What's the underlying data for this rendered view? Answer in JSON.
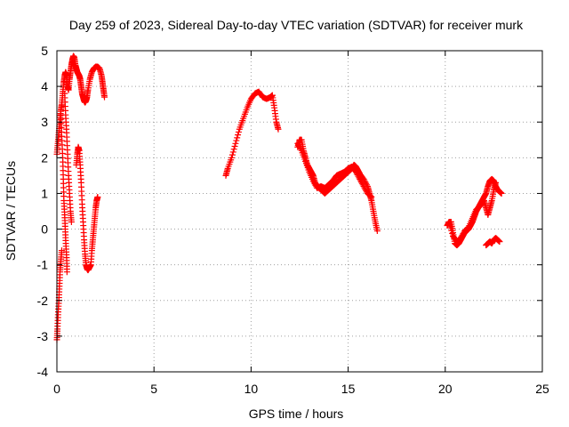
{
  "chart_data": {
    "type": "scatter",
    "title": "Day 259 of 2023, Sidereal Day-to-day VTEC variation (SDTVAR) for receiver murk",
    "xlabel": "GPS time / hours",
    "ylabel": "SDTVAR / TECUs",
    "xlim": [
      0,
      25
    ],
    "ylim": [
      -4,
      5
    ],
    "xticks": [
      0,
      5,
      10,
      15,
      20,
      25
    ],
    "yticks": [
      -4,
      -3,
      -2,
      -1,
      0,
      1,
      2,
      3,
      4,
      5
    ],
    "grid": true,
    "marker": "+",
    "series": [
      {
        "name": "SDTVAR",
        "color": "#ff0000",
        "segments": [
          [
            [
              0.0,
              2.1
            ],
            [
              0.05,
              2.4
            ],
            [
              0.1,
              2.7
            ],
            [
              0.15,
              3.0
            ],
            [
              0.2,
              3.3
            ],
            [
              0.25,
              3.5
            ],
            [
              0.3,
              3.8
            ],
            [
              0.35,
              4.1
            ],
            [
              0.4,
              4.3
            ],
            [
              0.45,
              4.4
            ],
            [
              0.5,
              4.3
            ],
            [
              0.55,
              4.0
            ],
            [
              0.6,
              3.9
            ],
            [
              0.65,
              4.2
            ],
            [
              0.7,
              4.4
            ],
            [
              0.75,
              4.6
            ],
            [
              0.8,
              4.75
            ],
            [
              0.85,
              4.85
            ],
            [
              0.9,
              4.8
            ],
            [
              0.95,
              4.6
            ],
            [
              1.0,
              4.5
            ],
            [
              1.05,
              4.4
            ],
            [
              1.1,
              4.35
            ],
            [
              1.15,
              4.3
            ],
            [
              1.2,
              4.2
            ],
            [
              1.25,
              4.0
            ],
            [
              1.3,
              3.8
            ],
            [
              1.35,
              3.7
            ],
            [
              1.4,
              3.6
            ],
            [
              1.45,
              3.55
            ],
            [
              1.5,
              3.6
            ],
            [
              1.55,
              3.7
            ],
            [
              1.6,
              3.9
            ],
            [
              1.7,
              4.2
            ],
            [
              1.8,
              4.4
            ],
            [
              1.9,
              4.5
            ],
            [
              2.0,
              4.55
            ],
            [
              2.1,
              4.55
            ],
            [
              2.2,
              4.5
            ],
            [
              2.3,
              4.3
            ],
            [
              2.35,
              4.1
            ],
            [
              2.4,
              3.9
            ],
            [
              2.45,
              3.7
            ]
          ],
          [
            [
              0.2,
              3.2
            ],
            [
              0.25,
              2.6
            ],
            [
              0.3,
              2.0
            ],
            [
              0.33,
              1.4
            ],
            [
              0.36,
              0.8
            ],
            [
              0.4,
              0.4
            ],
            [
              0.43,
              0.0
            ],
            [
              0.46,
              -0.4
            ],
            [
              0.5,
              -0.8
            ],
            [
              0.52,
              -1.2
            ]
          ],
          [
            [
              0.4,
              3.8
            ],
            [
              0.45,
              3.2
            ],
            [
              0.5,
              2.7
            ],
            [
              0.55,
              2.1
            ],
            [
              0.6,
              1.5
            ],
            [
              0.65,
              1.0
            ],
            [
              0.7,
              0.5
            ],
            [
              0.75,
              0.2
            ]
          ],
          [
            [
              1.0,
              1.8
            ],
            [
              1.05,
              2.1
            ],
            [
              1.1,
              2.3
            ],
            [
              1.15,
              2.2
            ],
            [
              1.2,
              1.8
            ],
            [
              1.25,
              1.3
            ],
            [
              1.3,
              0.7
            ],
            [
              1.35,
              0.2
            ],
            [
              1.4,
              -0.3
            ],
            [
              1.45,
              -0.7
            ],
            [
              1.5,
              -1.0
            ],
            [
              1.55,
              -1.1
            ],
            [
              1.6,
              -1.15
            ],
            [
              1.65,
              -1.1
            ],
            [
              1.7,
              -1.05
            ],
            [
              1.75,
              -1.0
            ],
            [
              1.8,
              -0.6
            ],
            [
              1.85,
              -0.3
            ],
            [
              1.9,
              0.0
            ],
            [
              1.95,
              0.3
            ],
            [
              2.0,
              0.6
            ],
            [
              2.05,
              0.8
            ],
            [
              2.1,
              0.9
            ]
          ],
          [
            [
              0.0,
              -3.1
            ],
            [
              0.03,
              -2.8
            ],
            [
              0.06,
              -2.4
            ],
            [
              0.1,
              -2.0
            ],
            [
              0.13,
              -1.6
            ],
            [
              0.16,
              -1.2
            ],
            [
              0.2,
              -0.9
            ],
            [
              0.25,
              -0.6
            ]
          ],
          [
            [
              8.7,
              1.5
            ],
            [
              8.8,
              1.7
            ],
            [
              9.0,
              2.0
            ],
            [
              9.2,
              2.4
            ],
            [
              9.4,
              2.8
            ],
            [
              9.6,
              3.1
            ],
            [
              9.8,
              3.4
            ],
            [
              10.0,
              3.65
            ],
            [
              10.2,
              3.8
            ],
            [
              10.4,
              3.85
            ],
            [
              10.6,
              3.7
            ],
            [
              10.8,
              3.65
            ],
            [
              11.0,
              3.7
            ],
            [
              11.1,
              3.75
            ],
            [
              11.2,
              3.4
            ],
            [
              11.3,
              3.0
            ],
            [
              11.4,
              2.8
            ]
          ],
          [
            [
              12.4,
              2.3
            ],
            [
              12.5,
              2.5
            ],
            [
              12.6,
              2.5
            ],
            [
              12.7,
              2.2
            ],
            [
              12.8,
              2.0
            ],
            [
              12.9,
              1.8
            ],
            [
              13.0,
              1.7
            ],
            [
              13.1,
              1.6
            ],
            [
              13.2,
              1.5
            ],
            [
              13.3,
              1.3
            ],
            [
              13.4,
              1.2
            ],
            [
              13.6,
              1.1
            ],
            [
              13.8,
              1.0
            ],
            [
              14.0,
              1.1
            ],
            [
              14.2,
              1.2
            ],
            [
              14.4,
              1.3
            ],
            [
              14.6,
              1.4
            ],
            [
              14.8,
              1.5
            ],
            [
              15.0,
              1.6
            ],
            [
              15.2,
              1.7
            ],
            [
              15.3,
              1.8
            ],
            [
              15.4,
              1.75
            ],
            [
              15.5,
              1.65
            ],
            [
              15.6,
              1.55
            ],
            [
              15.8,
              1.4
            ],
            [
              16.0,
              1.2
            ],
            [
              16.1,
              1.0
            ],
            [
              16.2,
              0.8
            ],
            [
              16.3,
              0.5
            ],
            [
              16.4,
              0.2
            ],
            [
              16.5,
              -0.05
            ]
          ],
          [
            [
              12.4,
              2.4
            ],
            [
              12.6,
              2.2
            ],
            [
              12.8,
              1.9
            ],
            [
              13.0,
              1.6
            ],
            [
              13.2,
              1.35
            ],
            [
              13.4,
              1.15
            ],
            [
              13.6,
              1.2
            ],
            [
              13.8,
              1.15
            ],
            [
              14.0,
              1.25
            ],
            [
              14.2,
              1.35
            ],
            [
              14.4,
              1.5
            ],
            [
              14.6,
              1.55
            ],
            [
              14.8,
              1.6
            ],
            [
              15.0,
              1.7
            ],
            [
              15.2,
              1.75
            ],
            [
              15.4,
              1.6
            ],
            [
              15.6,
              1.4
            ],
            [
              15.8,
              1.2
            ],
            [
              16.0,
              1.0
            ],
            [
              16.2,
              0.9
            ]
          ],
          [
            [
              20.1,
              0.1
            ],
            [
              20.2,
              0.2
            ],
            [
              20.3,
              0.2
            ],
            [
              20.4,
              -0.1
            ],
            [
              20.5,
              -0.4
            ],
            [
              20.6,
              -0.45
            ],
            [
              20.7,
              -0.4
            ],
            [
              20.8,
              -0.3
            ],
            [
              20.9,
              -0.2
            ],
            [
              21.0,
              -0.1
            ],
            [
              21.1,
              -0.05
            ],
            [
              21.2,
              0.0
            ],
            [
              21.3,
              0.1
            ],
            [
              21.4,
              0.2
            ],
            [
              21.5,
              0.35
            ],
            [
              21.6,
              0.5
            ],
            [
              21.7,
              0.6
            ],
            [
              21.8,
              0.7
            ],
            [
              21.9,
              0.8
            ],
            [
              22.0,
              0.9
            ],
            [
              22.1,
              1.0
            ],
            [
              22.2,
              1.2
            ],
            [
              22.3,
              1.35
            ],
            [
              22.4,
              1.4
            ],
            [
              22.5,
              1.35
            ],
            [
              22.6,
              1.2
            ],
            [
              22.7,
              1.1
            ],
            [
              22.8,
              1.05
            ],
            [
              22.9,
              1.0
            ]
          ],
          [
            [
              20.2,
              0.2
            ],
            [
              20.4,
              -0.2
            ],
            [
              20.6,
              -0.35
            ],
            [
              20.8,
              -0.25
            ],
            [
              21.0,
              -0.05
            ],
            [
              21.2,
              0.05
            ],
            [
              21.4,
              0.3
            ],
            [
              21.6,
              0.55
            ],
            [
              21.8,
              0.65
            ],
            [
              22.0,
              0.8
            ],
            [
              22.1,
              0.6
            ],
            [
              22.2,
              0.4
            ],
            [
              22.3,
              0.6
            ],
            [
              22.4,
              0.8
            ],
            [
              22.5,
              1.1
            ],
            [
              22.6,
              1.3
            ]
          ],
          [
            [
              22.1,
              -0.45
            ],
            [
              22.2,
              -0.4
            ],
            [
              22.3,
              -0.35
            ],
            [
              22.4,
              -0.4
            ],
            [
              22.5,
              -0.3
            ],
            [
              22.6,
              -0.25
            ],
            [
              22.7,
              -0.3
            ],
            [
              22.8,
              -0.35
            ]
          ]
        ]
      }
    ]
  }
}
